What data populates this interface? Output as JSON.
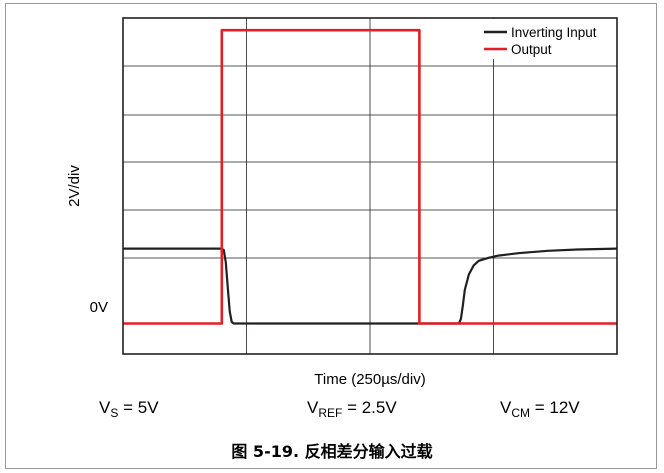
{
  "chart_data": {
    "type": "line",
    "x": [
      0,
      1,
      1.02,
      1.04,
      1.06,
      1.08,
      1.1,
      1.12,
      1.14,
      2.0,
      2.3,
      3.0,
      3.2,
      3.22,
      3.24,
      3.26,
      3.3,
      3.4,
      3.5,
      3.6,
      3.8,
      4.0,
      4.3,
      4.6,
      5.0
    ],
    "xlim": [
      0,
      5
    ],
    "ylim": [
      -1,
      10
    ],
    "x_divisions": 4,
    "y_divisions": 6,
    "grid": true,
    "legend_position": "top-right",
    "xlabel": "Time (250µs/div)",
    "ylabel": "2V/div",
    "zero_label": "0V",
    "series": [
      {
        "name": "Inverting Input",
        "color": "#231f20",
        "x": [
          0,
          1,
          1.02,
          1.04,
          1.06,
          1.08,
          1.1,
          1.12,
          1.14,
          2.0,
          3.0,
          3.4,
          3.42,
          3.44,
          3.46,
          3.5,
          3.55,
          3.6,
          3.7,
          3.8,
          4.0,
          4.3,
          4.6,
          5.0
        ],
        "y": [
          2.45,
          2.45,
          2.4,
          2.0,
          1.2,
          0.4,
          0.05,
          0.0,
          0.0,
          0.0,
          0.0,
          0.0,
          0.15,
          0.6,
          1.1,
          1.6,
          1.9,
          2.05,
          2.15,
          2.22,
          2.3,
          2.38,
          2.42,
          2.45
        ]
      },
      {
        "name": "Output",
        "color": "#e31f26",
        "x": [
          0,
          1.0,
          1.0,
          3.0,
          3.0,
          5.0
        ],
        "y": [
          0,
          0,
          9.6,
          9.6,
          0,
          0
        ]
      }
    ]
  },
  "conditions": {
    "vs": {
      "v": "V",
      "sub": "S",
      "rest": " = 5V"
    },
    "vref": {
      "v": "V",
      "sub": "REF",
      "rest": " = 2.5V"
    },
    "vcm": {
      "v": "V",
      "sub": "CM",
      "rest": " = 12V"
    }
  },
  "caption": "图 5-19. 反相差分输入过载"
}
